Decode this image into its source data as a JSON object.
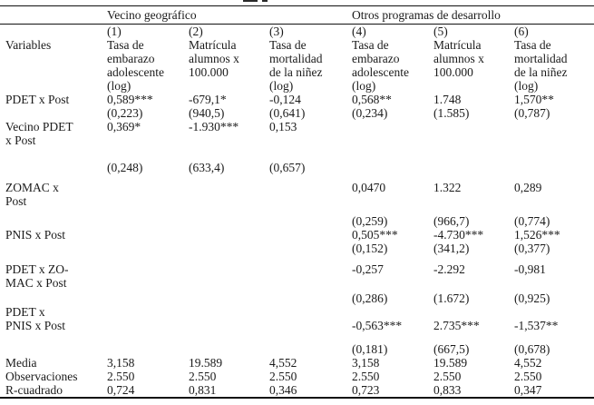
{
  "table": {
    "group_header": {
      "left": "Vecino geográfico",
      "right": "Otros programas de desarrollo"
    },
    "column_numbers": [
      "(1)",
      "(2)",
      "(3)",
      "(4)",
      "(5)",
      "(6)"
    ],
    "variables_label": "Variables",
    "column_titles": [
      "Tasa de\nembarazo\nadolescente\n(log)",
      "Matrícula\nalumnos x\n100.000",
      "Tasa de\nmortalidad\nde la niñez\n(log)",
      "Tasa de\nembarazo\nadolescente\n(log)",
      "Matrícula\nalumnos x\n100.000",
      "Tasa de\nmortalidad\nde la niñez\n(log)"
    ],
    "lines": [
      {
        "label": "PDET x Post",
        "cells": [
          "0,589***",
          "-679,1*",
          "-0,124",
          "0,568**",
          "1.748",
          "1,570**"
        ]
      },
      {
        "label": "",
        "cells": [
          "(0,223)",
          "(940,5)",
          "(0,641)",
          "(0,234)",
          "(1.585)",
          "(0,787)"
        ]
      },
      {
        "label": "Vecino PDET",
        "cells": [
          "0,369*",
          "-1.930***",
          "0,153",
          "",
          "",
          ""
        ]
      },
      {
        "label": "x Post",
        "cells": [
          "",
          "",
          "",
          "",
          "",
          ""
        ]
      },
      {
        "spacer": 15
      },
      {
        "label": "",
        "cells": [
          "(0,248)",
          "(633,4)",
          "(0,657)",
          "",
          "",
          ""
        ]
      },
      {
        "spacer": 7
      },
      {
        "label": "ZOMAC x",
        "cells": [
          "",
          "",
          "",
          "0,0470",
          "1.322",
          "0,289"
        ]
      },
      {
        "label": "Post",
        "cells": [
          "",
          "",
          "",
          "",
          "",
          ""
        ]
      },
      {
        "spacer": 7
      },
      {
        "label": "",
        "cells": [
          "",
          "",
          "",
          "(0,259)",
          "(966,7)",
          "(0,774)"
        ]
      },
      {
        "label": "PNIS x Post",
        "cells": [
          "",
          "",
          "",
          "0,505***",
          "-4.730***",
          "1,526***"
        ]
      },
      {
        "label": "",
        "cells": [
          "",
          "",
          "",
          "(0,152)",
          "(341,2)",
          "(0,377)"
        ]
      },
      {
        "spacer": 8
      },
      {
        "label": "PDET x ZO-",
        "cells": [
          "",
          "",
          "",
          "-0,257",
          "-2.292",
          "-0,981"
        ]
      },
      {
        "label": "MAC x Post",
        "cells": [
          "",
          "",
          "",
          "",
          "",
          ""
        ]
      },
      {
        "spacer": 2
      },
      {
        "label": "",
        "cells": [
          "",
          "",
          "",
          "(0,286)",
          "(1.672)",
          "(0,925)"
        ]
      },
      {
        "label": "PDET x",
        "cells": [
          "",
          "",
          "",
          "",
          "",
          ""
        ]
      },
      {
        "label": "PNIS x Post",
        "cells": [
          "",
          "",
          "",
          "-0,563***",
          "2.735***",
          "-1,537**"
        ]
      },
      {
        "spacer": 11
      },
      {
        "label": "",
        "cells": [
          "",
          "",
          "",
          "(0,181)",
          "(667,5)",
          "(0,678)"
        ]
      },
      {
        "label": "Media",
        "cells": [
          "3,158",
          "19.589",
          "4,552",
          "3,158",
          "19.589",
          "4,552"
        ]
      },
      {
        "label": "Observaciones",
        "cells": [
          "2.550",
          "2.550",
          "2.550",
          "2.550",
          "2.550",
          "2.550"
        ]
      },
      {
        "label": "R-cuadrado",
        "cells": [
          "0,724",
          "0,831",
          "0,346",
          "0,723",
          "0,833",
          "0,347"
        ]
      }
    ]
  }
}
